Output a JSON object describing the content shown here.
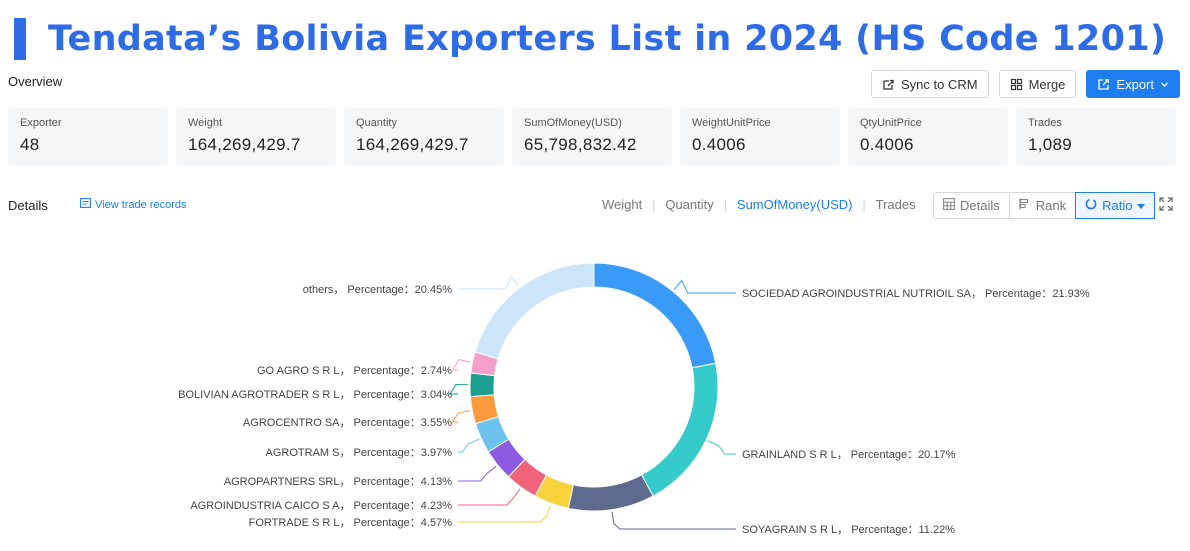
{
  "page_title": "Tendata’s Bolivia Exporters List in 2024 (HS Code 1201)",
  "colors": {
    "accent": "#2e6be6",
    "primary_button": "#1e7df0"
  },
  "overview": {
    "label": "Overview"
  },
  "toolbar": {
    "sync_label": "Sync to CRM",
    "sync_icon": "sync-icon",
    "merge_label": "Merge",
    "merge_icon": "merge-icon",
    "export_label": "Export",
    "export_icon": "export-icon"
  },
  "stats": [
    {
      "label": "Exporter",
      "value": "48"
    },
    {
      "label": "Weight",
      "value": "164,269,429.7"
    },
    {
      "label": "Quantity",
      "value": "164,269,429.7"
    },
    {
      "label": "SumOfMoney(USD)",
      "value": "65,798,832.42"
    },
    {
      "label": "WeightUnitPrice",
      "value": "0.4006"
    },
    {
      "label": "QtyUnitPrice",
      "value": "0.4006"
    },
    {
      "label": "Trades",
      "value": "1,089"
    }
  ],
  "details": {
    "label": "Details",
    "view_trade_label": "View trade records"
  },
  "metric_tabs": [
    "Weight",
    "Quantity",
    "SumOfMoney(USD)",
    "Trades"
  ],
  "active_metric": "SumOfMoney(USD)",
  "view_buttons": {
    "details": "Details",
    "rank": "Rank",
    "ratio": "Ratio"
  },
  "chart_data": {
    "type": "pie",
    "variant": "donut",
    "label_format": "{name}， Percentage：{value}%",
    "series": [
      {
        "name": "SOCIEDAD AGROINDUSTRIAL NUTRIOIL SA",
        "value": 21.93,
        "color": "#3a9af7"
      },
      {
        "name": "GRAINLAND S R L",
        "value": 20.17,
        "color": "#36cbcb"
      },
      {
        "name": "SOYAGRAIN S R L",
        "value": 11.22,
        "color": "#5e6b8e"
      },
      {
        "name": "FORTRADE S R L",
        "value": 4.57,
        "color": "#f6d23c"
      },
      {
        "name": "AGROINDUSTRIA CAICO S A",
        "value": 4.23,
        "color": "#f0637a"
      },
      {
        "name": "AGROPARTNERS SRL",
        "value": 4.13,
        "color": "#8d5be3"
      },
      {
        "name": "AGROTRAM S",
        "value": 3.97,
        "color": "#6ec3ee"
      },
      {
        "name": "AGROCENTRO SA",
        "value": 3.55,
        "color": "#f99a3c"
      },
      {
        "name": "BOLIVIAN AGROTRADER S R L",
        "value": 3.04,
        "color": "#1e9e8f"
      },
      {
        "name": "GO AGRO S R L",
        "value": 2.74,
        "color": "#f59fcb"
      },
      {
        "name": "others",
        "value": 20.45,
        "color": "#cde5fb"
      }
    ]
  }
}
